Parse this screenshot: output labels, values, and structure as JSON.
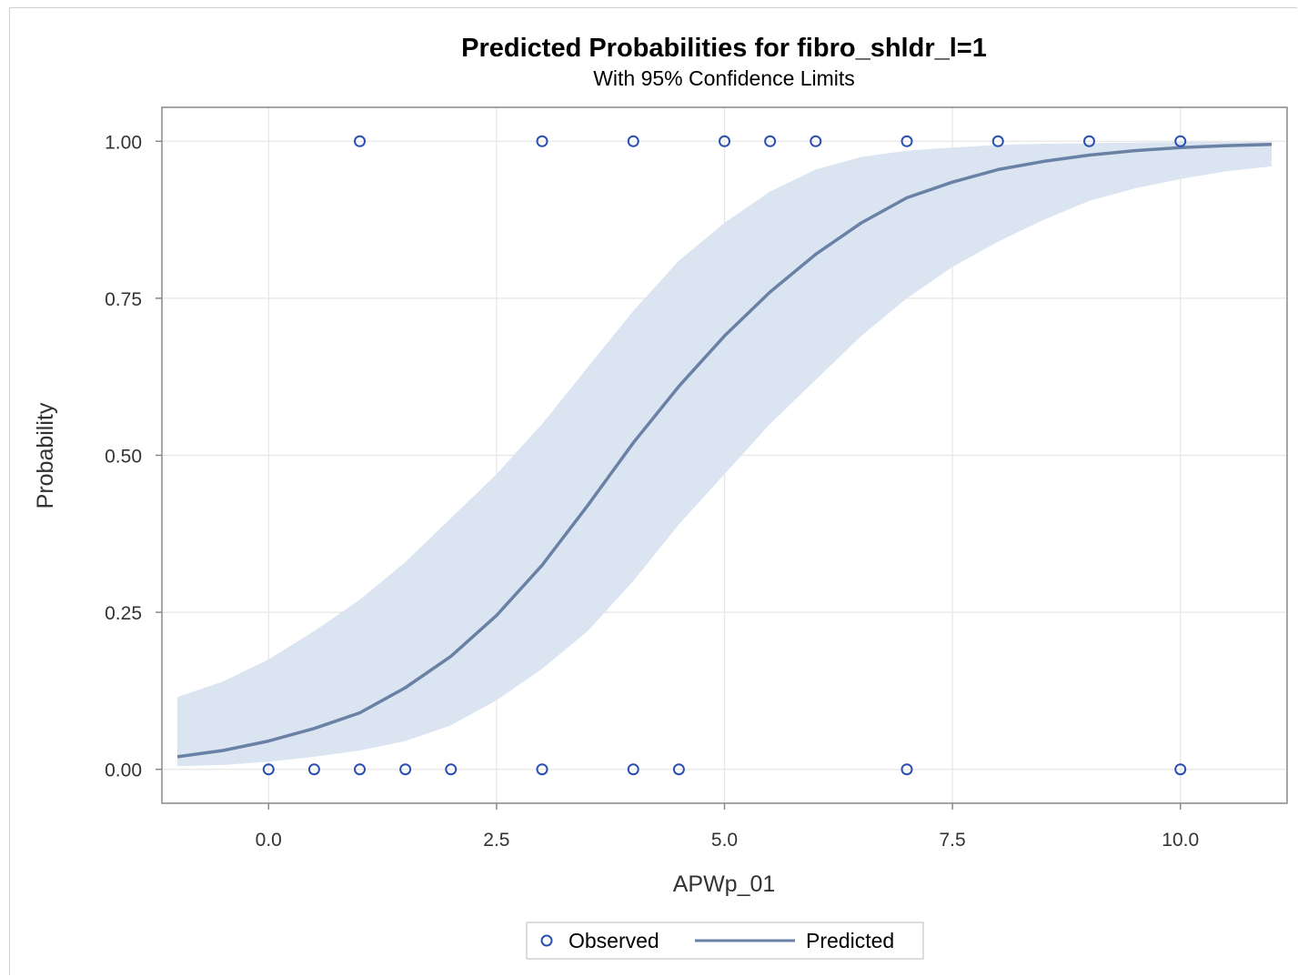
{
  "chart_data": {
    "type": "line",
    "title": "Predicted Probabilities for fibro_shldr_l=1",
    "subtitle": "With 95% Confidence Limits",
    "xlabel": "APWp_01",
    "ylabel": "Probability",
    "xlim": [
      -1.17,
      11.17
    ],
    "ylim": [
      -0.054,
      1.054
    ],
    "xticks": [
      0.0,
      2.5,
      5.0,
      7.5,
      10.0
    ],
    "xtick_labels": [
      "0.0",
      "2.5",
      "5.0",
      "7.5",
      "10.0"
    ],
    "yticks": [
      0.0,
      0.25,
      0.5,
      0.75,
      1.0
    ],
    "ytick_labels": [
      "0.00",
      "0.25",
      "0.50",
      "0.75",
      "1.00"
    ],
    "grid": true,
    "legend_position": "bottom",
    "colors": {
      "line": "#6a81a6",
      "band": "#dbe4f1",
      "marker": "#2a4fb0",
      "grid": "#e6e6e6",
      "frame": "#888888"
    },
    "predicted": {
      "x": [
        -1.0,
        -0.5,
        0.0,
        0.5,
        1.0,
        1.5,
        2.0,
        2.5,
        3.0,
        3.5,
        4.0,
        4.5,
        5.0,
        5.5,
        6.0,
        6.5,
        7.0,
        7.5,
        8.0,
        8.5,
        9.0,
        9.5,
        10.0,
        10.5,
        11.0
      ],
      "y": [
        0.02,
        0.03,
        0.045,
        0.065,
        0.09,
        0.13,
        0.18,
        0.245,
        0.325,
        0.42,
        0.52,
        0.61,
        0.69,
        0.76,
        0.82,
        0.87,
        0.91,
        0.935,
        0.955,
        0.968,
        0.978,
        0.985,
        0.99,
        0.993,
        0.995
      ]
    },
    "confidence_band": {
      "x": [
        -1.0,
        -0.5,
        0.0,
        0.5,
        1.0,
        1.5,
        2.0,
        2.5,
        3.0,
        3.5,
        4.0,
        4.5,
        5.0,
        5.5,
        6.0,
        6.5,
        7.0,
        7.5,
        8.0,
        8.5,
        9.0,
        9.5,
        10.0,
        10.5,
        11.0
      ],
      "lower": [
        0.005,
        0.007,
        0.012,
        0.02,
        0.03,
        0.045,
        0.07,
        0.11,
        0.16,
        0.22,
        0.3,
        0.39,
        0.47,
        0.55,
        0.62,
        0.69,
        0.75,
        0.8,
        0.84,
        0.875,
        0.905,
        0.925,
        0.94,
        0.952,
        0.96
      ],
      "upper": [
        0.115,
        0.14,
        0.175,
        0.22,
        0.27,
        0.33,
        0.4,
        0.47,
        0.55,
        0.64,
        0.73,
        0.81,
        0.87,
        0.92,
        0.955,
        0.975,
        0.985,
        0.99,
        0.994,
        0.996,
        0.997,
        0.998,
        0.999,
        0.999,
        0.999
      ]
    },
    "observed": [
      {
        "x": 1.0,
        "y": 1
      },
      {
        "x": 3.0,
        "y": 1
      },
      {
        "x": 4.0,
        "y": 1
      },
      {
        "x": 5.0,
        "y": 1
      },
      {
        "x": 5.5,
        "y": 1
      },
      {
        "x": 6.0,
        "y": 1
      },
      {
        "x": 7.0,
        "y": 1
      },
      {
        "x": 8.0,
        "y": 1
      },
      {
        "x": 9.0,
        "y": 1
      },
      {
        "x": 10.0,
        "y": 1
      },
      {
        "x": 0.0,
        "y": 0
      },
      {
        "x": 0.5,
        "y": 0
      },
      {
        "x": 1.0,
        "y": 0
      },
      {
        "x": 1.5,
        "y": 0
      },
      {
        "x": 2.0,
        "y": 0
      },
      {
        "x": 3.0,
        "y": 0
      },
      {
        "x": 4.0,
        "y": 0
      },
      {
        "x": 4.5,
        "y": 0
      },
      {
        "x": 7.0,
        "y": 0
      },
      {
        "x": 10.0,
        "y": 0
      }
    ],
    "legend": [
      {
        "name": "Observed",
        "marker": "circle"
      },
      {
        "name": "Predicted",
        "marker": "line"
      }
    ]
  }
}
